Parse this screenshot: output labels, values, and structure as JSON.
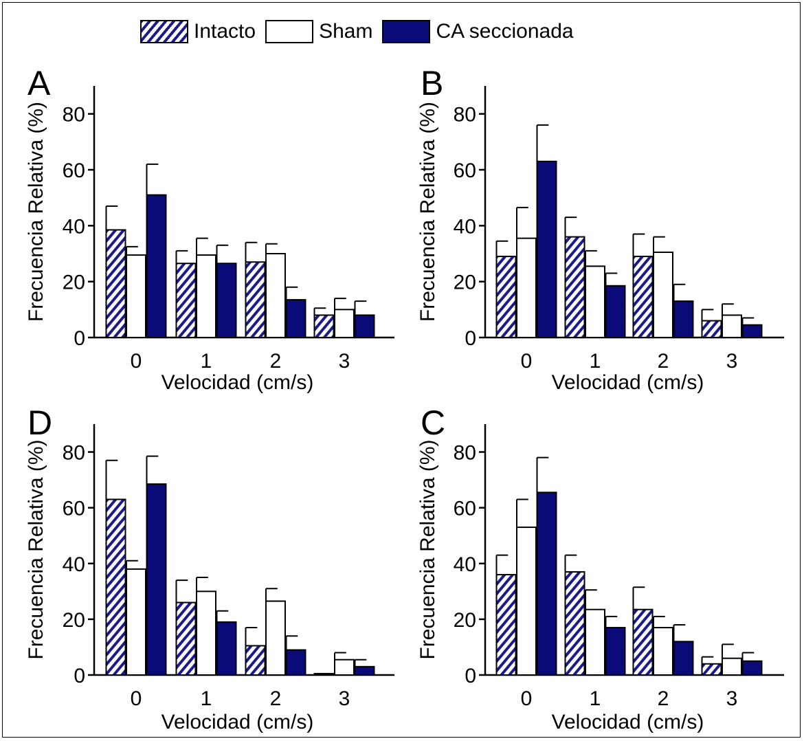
{
  "legend": [
    {
      "label": "Intacto",
      "style": "hatch"
    },
    {
      "label": "Sham",
      "style": "white"
    },
    {
      "label": "CA seccionada",
      "style": "navy"
    }
  ],
  "colors": {
    "navy": "#0a0a78",
    "hatch_line": "#1a1a8c",
    "white": "#ffffff",
    "axis": "#000000"
  },
  "chart_data": [
    {
      "type": "bar",
      "panel_label": "A",
      "categories": [
        "0",
        "1",
        "2",
        "3"
      ],
      "xlabel": "Velocidad (cm/s)",
      "ylabel": "Frecuencia Relativa (%)",
      "ylim": [
        0,
        90
      ],
      "yticks": [
        0,
        20,
        40,
        60,
        80
      ],
      "series": [
        {
          "name": "Intacto",
          "values": [
            38.5,
            26.5,
            27,
            8
          ],
          "errors": [
            8.5,
            4.5,
            7,
            2.5
          ]
        },
        {
          "name": "Sham",
          "values": [
            29.5,
            29.5,
            30,
            10
          ],
          "errors": [
            3,
            6,
            3.5,
            4
          ]
        },
        {
          "name": "CA seccionada",
          "values": [
            51,
            26.5,
            13.5,
            8
          ],
          "errors": [
            11,
            6.5,
            4.5,
            5
          ]
        }
      ]
    },
    {
      "type": "bar",
      "panel_label": "B",
      "categories": [
        "0",
        "1",
        "2",
        "3"
      ],
      "xlabel": "Velocidad (cm/s)",
      "ylabel": "Frecuencia Relativa (%)",
      "ylim": [
        0,
        90
      ],
      "yticks": [
        0,
        20,
        40,
        60,
        80
      ],
      "series": [
        {
          "name": "Intacto",
          "values": [
            29,
            36,
            29,
            6
          ],
          "errors": [
            5.5,
            7,
            8,
            4
          ]
        },
        {
          "name": "Sham",
          "values": [
            35.5,
            25.5,
            30.5,
            8
          ],
          "errors": [
            11,
            5.5,
            5.5,
            4
          ]
        },
        {
          "name": "CA seccionada",
          "values": [
            63,
            18.5,
            13,
            4.5
          ],
          "errors": [
            13,
            4.5,
            6,
            2.5
          ]
        }
      ]
    },
    {
      "type": "bar",
      "panel_label": "D",
      "categories": [
        "0",
        "1",
        "2",
        "3"
      ],
      "xlabel": "Velocidad (cm/s)",
      "ylabel": "Frecuencia Relativa (%)",
      "ylim": [
        0,
        90
      ],
      "yticks": [
        0,
        20,
        40,
        60,
        80
      ],
      "series": [
        {
          "name": "Intacto",
          "values": [
            63,
            26,
            10.5,
            0.5
          ],
          "errors": [
            14,
            8,
            6.5,
            0
          ]
        },
        {
          "name": "Sham",
          "values": [
            38,
            30,
            26.5,
            5.5
          ],
          "errors": [
            3,
            5,
            4.5,
            2.5
          ]
        },
        {
          "name": "CA seccionada",
          "values": [
            68.5,
            19,
            9,
            3
          ],
          "errors": [
            10,
            4,
            5,
            2.5
          ]
        }
      ]
    },
    {
      "type": "bar",
      "panel_label": "C",
      "categories": [
        "0",
        "1",
        "2",
        "3"
      ],
      "xlabel": "Velocidad (cm/s)",
      "ylabel": "Frecuencia Relativa (%)",
      "ylim": [
        0,
        90
      ],
      "yticks": [
        0,
        20,
        40,
        60,
        80
      ],
      "series": [
        {
          "name": "Intacto",
          "values": [
            36,
            37,
            23.5,
            4
          ],
          "errors": [
            7,
            6,
            8,
            2.5
          ]
        },
        {
          "name": "Sham",
          "values": [
            53,
            23.5,
            17,
            6
          ],
          "errors": [
            10,
            7,
            4,
            5
          ]
        },
        {
          "name": "CA seccionada",
          "values": [
            65.5,
            17,
            12,
            5
          ],
          "errors": [
            12.5,
            4,
            6,
            3
          ]
        }
      ]
    }
  ]
}
